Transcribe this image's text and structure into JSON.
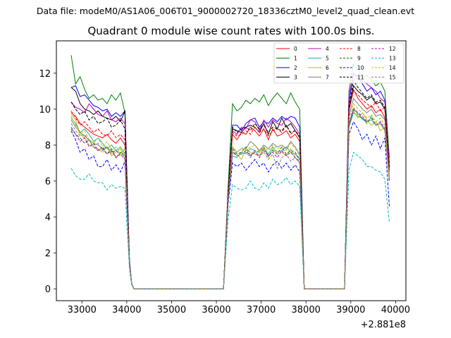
{
  "header": {
    "suptitle": "Data file: modeM0/AS1A06_006T01_9000002720_18336cztM0_level2_quad_clean.evt"
  },
  "chart_data": {
    "type": "line",
    "title": "Quadrant 0 module wise count rates with 100.0s bins.",
    "xlabel": "",
    "ylabel": "",
    "x_offset_label": "+2.881e8",
    "xlim": [
      32430,
      40230
    ],
    "ylim": [
      -0.66,
      13.8
    ],
    "xticks": [
      33000,
      34000,
      35000,
      36000,
      37000,
      38000,
      39000,
      40000
    ],
    "xtick_labels": [
      "33000",
      "34000",
      "35000",
      "36000",
      "37000",
      "38000",
      "39000",
      "40000"
    ],
    "yticks": [
      0,
      2,
      4,
      6,
      8,
      10,
      12
    ],
    "ytick_labels": [
      "0",
      "2",
      "4",
      "6",
      "8",
      "10",
      "12"
    ],
    "grid": false,
    "legend_position": "top-right",
    "legend_columns": 4,
    "x": [
      32760,
      32860,
      32960,
      33060,
      33160,
      33260,
      33360,
      33460,
      33560,
      33660,
      33760,
      33860,
      33960,
      34060,
      34110,
      34160,
      34260,
      36160,
      36260,
      36360,
      36460,
      36560,
      36660,
      36760,
      36860,
      36960,
      37060,
      37160,
      37260,
      37360,
      37460,
      37560,
      37660,
      37760,
      37860,
      37960,
      38060,
      38160,
      38860,
      38960,
      39060,
      39160,
      39260,
      39360,
      39460,
      39560,
      39660,
      39760,
      39860
    ],
    "series": [
      {
        "name": "0",
        "color": "#ff0000",
        "dash": false,
        "values": [
          9.8,
          9.6,
          9.2,
          9.0,
          8.8,
          8.6,
          8.5,
          8.4,
          8.6,
          8.3,
          8.1,
          8.4,
          8.0,
          1.5,
          0.3,
          0,
          0,
          0,
          5.0,
          8.6,
          8.3,
          8.7,
          8.6,
          9.0,
          8.8,
          8.5,
          8.9,
          8.3,
          8.9,
          8.5,
          8.6,
          8.8,
          8.4,
          8.6,
          8.2,
          0,
          0,
          0,
          0,
          9.9,
          11.1,
          10.6,
          10.3,
          10.0,
          10.2,
          9.8,
          10.0,
          9.5,
          6.5
        ]
      },
      {
        "name": "1",
        "color": "#008000",
        "dash": false,
        "values": [
          13.0,
          11.4,
          11.8,
          11.1,
          10.6,
          10.8,
          10.5,
          10.6,
          10.3,
          10.8,
          10.5,
          10.9,
          9.8,
          1.6,
          0.3,
          0,
          0,
          0,
          5.5,
          10.3,
          9.9,
          10.1,
          10.5,
          10.3,
          10.6,
          10.4,
          10.8,
          10.2,
          10.6,
          10.9,
          10.6,
          10.3,
          10.9,
          10.4,
          10.0,
          0,
          0,
          0,
          0,
          11.0,
          12.5,
          12.2,
          11.7,
          11.9,
          11.6,
          11.3,
          11.5,
          11.0,
          7.3
        ]
      },
      {
        "name": "2",
        "color": "#0000ff",
        "dash": false,
        "values": [
          11.2,
          11.3,
          10.7,
          10.8,
          10.5,
          10.2,
          10.1,
          9.9,
          10.0,
          9.6,
          9.8,
          9.6,
          9.9,
          1.6,
          0.3,
          0,
          0,
          0,
          5.2,
          9.1,
          9.1,
          8.8,
          9.2,
          9.4,
          9.5,
          9.0,
          9.3,
          9.2,
          9.5,
          9.3,
          9.6,
          9.4,
          9.6,
          9.5,
          9.0,
          0,
          0,
          0,
          0,
          10.4,
          12.0,
          11.8,
          11.4,
          11.0,
          11.2,
          10.8,
          11.0,
          10.5,
          7.0
        ]
      },
      {
        "name": "3",
        "color": "#000000",
        "dash": false,
        "values": [
          11.2,
          11.0,
          10.3,
          10.0,
          9.9,
          9.7,
          9.9,
          9.6,
          9.5,
          9.4,
          9.6,
          9.3,
          9.9,
          1.5,
          0.3,
          0,
          0,
          0,
          5.3,
          8.9,
          8.8,
          8.7,
          9.0,
          9.1,
          9.0,
          8.7,
          9.2,
          8.6,
          9.3,
          8.9,
          9.5,
          9.0,
          9.2,
          8.8,
          8.4,
          0,
          0,
          0,
          0,
          10.0,
          11.3,
          11.0,
          10.8,
          10.5,
          10.7,
          10.3,
          10.4,
          10.0,
          6.8
        ]
      },
      {
        "name": "4",
        "color": "#bf00bf",
        "dash": false,
        "values": [
          10.4,
          10.1,
          10.0,
          9.8,
          10.3,
          10.0,
          9.7,
          9.6,
          9.9,
          9.4,
          9.3,
          9.5,
          9.2,
          1.5,
          0.3,
          0,
          0,
          0,
          5.2,
          8.8,
          8.6,
          9.0,
          8.9,
          9.4,
          9.3,
          8.8,
          9.4,
          9.0,
          9.4,
          9.2,
          9.1,
          9.5,
          9.3,
          9.0,
          8.6,
          0,
          0,
          0,
          0,
          10.8,
          11.9,
          11.7,
          11.6,
          11.4,
          11.2,
          11.0,
          10.6,
          10.4,
          7.0
        ]
      },
      {
        "name": "5",
        "color": "#20b2aa",
        "dash": false,
        "values": [
          9.5,
          9.2,
          8.7,
          8.9,
          8.6,
          8.2,
          8.4,
          8.1,
          7.8,
          8.0,
          7.7,
          7.9,
          7.5,
          1.4,
          0.3,
          0,
          0,
          0,
          4.8,
          7.4,
          7.3,
          7.6,
          7.5,
          7.8,
          7.7,
          7.4,
          7.8,
          7.5,
          7.9,
          7.6,
          7.7,
          7.9,
          7.6,
          7.5,
          7.2,
          0,
          0,
          0,
          0,
          9.0,
          9.8,
          9.6,
          9.5,
          9.3,
          9.4,
          9.1,
          9.2,
          8.8,
          6.3
        ]
      },
      {
        "name": "6",
        "color": "#bfbf00",
        "dash": false,
        "values": [
          9.7,
          9.4,
          8.6,
          8.4,
          8.0,
          7.9,
          7.8,
          7.6,
          7.9,
          7.4,
          7.6,
          7.8,
          7.2,
          1.4,
          0.3,
          0,
          0,
          0,
          4.7,
          7.6,
          7.5,
          7.2,
          7.8,
          7.6,
          7.5,
          7.4,
          7.9,
          7.3,
          7.8,
          7.5,
          7.6,
          7.4,
          7.8,
          7.3,
          7.0,
          0,
          0,
          0,
          0,
          9.3,
          9.9,
          9.5,
          9.8,
          9.4,
          9.1,
          9.3,
          8.8,
          9.0,
          6.0
        ]
      },
      {
        "name": "7",
        "color": "#808080",
        "dash": false,
        "values": [
          9.4,
          9.0,
          8.7,
          8.5,
          8.3,
          8.1,
          8.0,
          7.8,
          7.9,
          7.6,
          7.7,
          7.5,
          7.8,
          1.4,
          0.3,
          0,
          0,
          0,
          4.9,
          7.9,
          7.6,
          7.8,
          7.8,
          8.2,
          8.0,
          7.7,
          8.0,
          7.8,
          8.1,
          7.9,
          8.0,
          7.8,
          8.2,
          7.9,
          7.5,
          0,
          0,
          0,
          0,
          9.6,
          10.6,
          10.3,
          10.0,
          9.8,
          10.0,
          9.6,
          9.7,
          9.4,
          6.2
        ]
      },
      {
        "name": "8",
        "color": "#ff0000",
        "dash": true,
        "values": [
          9.9,
          9.5,
          9.1,
          9.3,
          9.0,
          8.7,
          8.9,
          8.6,
          8.5,
          8.8,
          8.4,
          8.6,
          8.3,
          1.5,
          0.3,
          0,
          0,
          0,
          5.1,
          8.7,
          8.5,
          8.6,
          8.8,
          8.6,
          9.0,
          8.7,
          8.9,
          8.5,
          8.8,
          8.9,
          8.7,
          9.1,
          8.6,
          8.8,
          8.4,
          0,
          0,
          0,
          0,
          10.0,
          11.0,
          10.8,
          10.5,
          10.3,
          10.1,
          10.4,
          9.9,
          10.1,
          6.6
        ]
      },
      {
        "name": "9",
        "color": "#008000",
        "dash": true,
        "values": [
          8.9,
          8.6,
          8.4,
          8.1,
          8.3,
          7.9,
          7.7,
          7.9,
          7.5,
          7.8,
          7.3,
          7.6,
          7.4,
          1.4,
          0.3,
          0,
          0,
          0,
          4.8,
          7.8,
          7.5,
          7.6,
          7.9,
          7.4,
          7.7,
          7.6,
          7.9,
          7.4,
          7.7,
          7.5,
          7.9,
          7.5,
          7.7,
          7.6,
          7.2,
          0,
          0,
          0,
          0,
          9.0,
          10.0,
          9.7,
          9.5,
          9.2,
          9.6,
          9.1,
          9.3,
          8.9,
          6.1
        ]
      },
      {
        "name": "10",
        "color": "#0000ff",
        "dash": true,
        "values": [
          8.8,
          8.3,
          7.6,
          7.8,
          7.2,
          7.4,
          6.8,
          6.8,
          7.2,
          6.6,
          6.9,
          6.5,
          7.1,
          1.3,
          0.3,
          0,
          0,
          0,
          4.6,
          7.0,
          6.8,
          7.0,
          6.6,
          6.9,
          7.2,
          6.8,
          7.0,
          6.5,
          6.9,
          7.1,
          6.7,
          7.0,
          6.6,
          6.9,
          6.5,
          0,
          0,
          0,
          0,
          8.6,
          9.3,
          8.9,
          8.3,
          8.6,
          8.0,
          8.5,
          7.8,
          8.4,
          4.6
        ]
      },
      {
        "name": "11",
        "color": "#000000",
        "dash": true,
        "values": [
          10.4,
          10.0,
          9.7,
          9.9,
          9.4,
          9.6,
          9.2,
          9.3,
          9.5,
          9.0,
          9.1,
          9.4,
          8.9,
          1.5,
          0.3,
          0,
          0,
          0,
          5.2,
          9.0,
          8.7,
          8.9,
          9.0,
          8.8,
          9.2,
          8.9,
          9.1,
          8.7,
          9.0,
          8.9,
          8.8,
          9.1,
          8.7,
          8.8,
          8.5,
          0,
          0,
          0,
          0,
          10.2,
          11.6,
          11.2,
          10.9,
          10.6,
          10.8,
          10.4,
          10.5,
          10.1,
          6.7
        ]
      },
      {
        "name": "12",
        "color": "#bf00bf",
        "dash": true,
        "values": [
          9.0,
          8.6,
          8.2,
          8.4,
          7.9,
          8.1,
          7.7,
          7.8,
          7.5,
          7.7,
          7.3,
          7.5,
          7.2,
          1.4,
          0.3,
          0,
          0,
          0,
          4.8,
          7.6,
          7.4,
          7.5,
          7.7,
          7.4,
          7.6,
          7.3,
          7.7,
          7.4,
          7.6,
          7.3,
          7.7,
          7.4,
          7.6,
          7.3,
          7.1,
          0,
          0,
          0,
          0,
          9.1,
          10.0,
          9.8,
          9.6,
          9.3,
          9.5,
          9.1,
          9.3,
          8.9,
          6.0
        ]
      },
      {
        "name": "13",
        "color": "#00bfbf",
        "dash": true,
        "values": [
          6.7,
          6.3,
          6.1,
          6.1,
          6.4,
          6.0,
          5.9,
          5.9,
          5.5,
          5.8,
          5.6,
          5.7,
          5.6,
          1.1,
          0.2,
          0,
          0,
          0,
          3.8,
          5.8,
          5.6,
          5.5,
          5.6,
          6.0,
          5.6,
          5.5,
          5.9,
          5.6,
          6.1,
          5.8,
          5.9,
          6.2,
          5.8,
          6.0,
          5.7,
          0,
          0,
          0,
          0,
          6.6,
          7.6,
          7.4,
          7.2,
          6.8,
          6.8,
          6.6,
          6.5,
          6.1,
          3.7
        ]
      },
      {
        "name": "14",
        "color": "#bfbf00",
        "dash": true,
        "values": [
          9.6,
          9.1,
          8.6,
          8.8,
          8.3,
          8.1,
          8.4,
          7.9,
          8.2,
          7.7,
          7.9,
          7.5,
          7.8,
          1.4,
          0.3,
          0,
          0,
          0,
          4.9,
          7.9,
          7.6,
          7.8,
          7.7,
          7.9,
          8.0,
          7.6,
          7.9,
          7.7,
          8.0,
          7.8,
          7.9,
          7.7,
          8.1,
          7.8,
          7.4,
          0,
          0,
          0,
          0,
          9.4,
          10.3,
          10.0,
          9.8,
          9.5,
          9.7,
          9.3,
          9.5,
          9.1,
          6.2
        ]
      },
      {
        "name": "15",
        "color": "#808080",
        "dash": true,
        "values": [
          9.2,
          8.8,
          8.5,
          8.6,
          8.2,
          8.0,
          8.1,
          7.7,
          7.9,
          7.5,
          7.7,
          7.4,
          7.6,
          1.4,
          0.3,
          0,
          0,
          0,
          4.8,
          7.7,
          7.4,
          7.5,
          7.6,
          7.3,
          7.7,
          7.4,
          7.6,
          7.2,
          7.5,
          6.7,
          7.3,
          7.5,
          7.1,
          7.3,
          7.0,
          0,
          0,
          0,
          0,
          9.2,
          10.1,
          9.8,
          9.4,
          9.3,
          9.5,
          9.1,
          9.2,
          8.8,
          6.0
        ]
      }
    ]
  }
}
